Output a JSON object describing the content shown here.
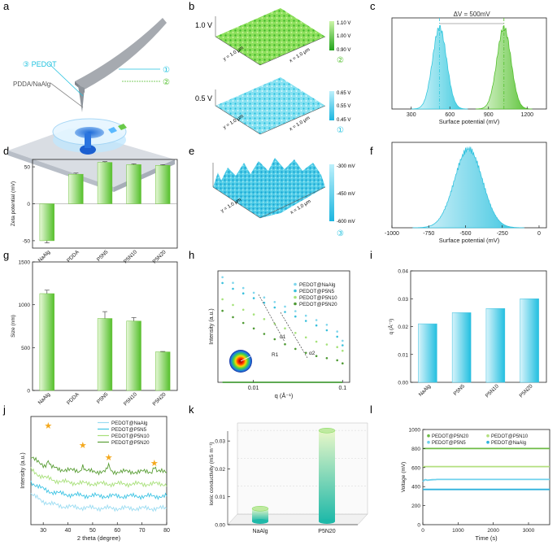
{
  "panel_labels": [
    "a",
    "b",
    "c",
    "d",
    "e",
    "f",
    "g",
    "h",
    "i",
    "j",
    "k",
    "l"
  ],
  "panel_a": {
    "labels": {
      "pedot": "③ PEDOT",
      "substrate": "PDDA/NaAlg",
      "circle1": "①",
      "circle2": "②"
    }
  },
  "panel_b": {
    "top": {
      "voltage": "1.0 V",
      "x_axis": "x = 1.0 μm",
      "y_axis": "y = 1.0 μm",
      "scale": [
        "1.10 V",
        "1.00 V",
        "0.90 V"
      ],
      "marker": "②"
    },
    "bottom": {
      "voltage": "0.5 V",
      "x_axis": "x = 1.0 μm",
      "y_axis": "y = 1.0 μm",
      "scale": [
        "0.65 V",
        "0.55 V",
        "0.45 V"
      ],
      "marker": "①"
    }
  },
  "panel_f": {
    "x_axis": "x = 1.0 μm",
    "y_axis": "y = 1.0 μm",
    "scale": [
      "-300 mV",
      "-450 mV",
      "-600 mV"
    ],
    "marker": "③"
  },
  "chart_data": [
    {
      "id": "c",
      "type": "area",
      "title": "",
      "xlabel": "Surface potential (mV)",
      "ylabel": "",
      "xlim": [
        150,
        1350
      ],
      "xticks": [
        "300",
        "600",
        "900",
        "1200"
      ],
      "annotation": "ΔV = 500mV",
      "series": [
        {
          "name": "① 0.5 V",
          "center": 520,
          "sd": 55,
          "color": "#33c7dd"
        },
        {
          "name": "② 1.0 V",
          "center": 1020,
          "sd": 55,
          "color": "#52bf2c"
        }
      ]
    },
    {
      "id": "d",
      "type": "bar",
      "title": "",
      "xlabel": "",
      "ylabel": "Zeta potential (mV)",
      "ylim": [
        -60,
        60
      ],
      "yticks": [
        "-50",
        "0",
        "50"
      ],
      "categories": [
        "NaAlg",
        "PDDA",
        "P5N5",
        "P5N10",
        "P5N20"
      ],
      "values": [
        -50,
        40,
        56,
        53,
        52
      ],
      "errors": [
        3,
        1.5,
        1,
        1,
        1
      ]
    },
    {
      "id": "g",
      "type": "area",
      "title": "",
      "xlabel": "Surface potential (mV)",
      "ylabel": "",
      "xlim": [
        -1000,
        50
      ],
      "xticks": [
        "-1000",
        "-750",
        "-500",
        "-250",
        "0"
      ],
      "series": [
        {
          "name": "③ PEDOT",
          "center": -480,
          "sd": 95,
          "color": "#33c3df"
        }
      ]
    },
    {
      "id": "e",
      "type": "bar",
      "title": "",
      "xlabel": "",
      "ylabel": "Size (nm)",
      "ylim": [
        0,
        1500
      ],
      "yticks": [
        "0",
        "500",
        "1000",
        "1500"
      ],
      "categories": [
        "NaAlg",
        "PDDA",
        "P5N5",
        "P5N10",
        "P5N20"
      ],
      "values": [
        1130,
        0,
        840,
        810,
        450
      ],
      "errors": [
        40,
        0,
        80,
        40,
        5
      ]
    },
    {
      "id": "h",
      "type": "scatter",
      "title": "",
      "xlabel": "q (Å⁻¹)",
      "ylabel": "Intensity (a.u.)",
      "xscale": "log",
      "xlim": [
        0.004,
        0.12
      ],
      "xticks": [
        "0.01",
        "0.1"
      ],
      "annotations": [
        "α1",
        "R1",
        "α2"
      ],
      "series": [
        {
          "name": "PEDOT@NaAlg",
          "color": "#7fd6ec",
          "y": [
            10.0,
            9.46,
            8.97,
            8.52,
            8.07,
            7.64,
            7.2,
            6.77,
            6.34,
            5.92,
            5.47,
            4.83,
            3.95
          ]
        },
        {
          "name": "PEDOT@P5N5",
          "color": "#3ac0dc",
          "y": [
            9.45,
            8.9,
            8.46,
            8.0,
            7.57,
            7.12,
            6.69,
            6.26,
            5.84,
            5.41,
            4.95,
            4.34,
            3.52
          ]
        },
        {
          "name": "PEDOT@P5N10",
          "color": "#a6e27a",
          "y": [
            7.9,
            7.36,
            6.9,
            6.45,
            6.01,
            5.57,
            5.13,
            4.7,
            4.27,
            3.87,
            3.6,
            3.35,
            3.0
          ]
        },
        {
          "name": "PEDOT@P5N20",
          "color": "#4f9a34",
          "y": [
            6.8,
            6.2,
            5.65,
            5.12,
            4.6,
            4.1,
            3.62,
            3.18,
            2.8,
            2.5,
            2.3,
            2.1,
            1.8
          ]
        }
      ],
      "x": [
        0.0045,
        0.0059,
        0.0077,
        0.0101,
        0.0132,
        0.0173,
        0.0226,
        0.0296,
        0.0388,
        0.0508,
        0.0665,
        0.087,
        0.1
      ]
    },
    {
      "id": "i",
      "type": "bar",
      "title": "",
      "xlabel": "",
      "ylabel": "q (Å⁻¹)",
      "ylim": [
        0,
        0.04
      ],
      "yticks": [
        "0.00",
        "0.01",
        "0.02",
        "0.03",
        "0.04"
      ],
      "categories": [
        "NaAlg",
        "P5N5",
        "P5N10",
        "P5N20"
      ],
      "values": [
        0.021,
        0.025,
        0.0265,
        0.03
      ]
    },
    {
      "id": "j",
      "type": "line",
      "title": "",
      "xlabel": "2 theta (degree)",
      "ylabel": "Intensity (a.u.)",
      "xlim": [
        25,
        80
      ],
      "xticks": [
        "30",
        "40",
        "50",
        "60",
        "70",
        "80"
      ],
      "peaks_marked": [
        32,
        46,
        56.5,
        75
      ],
      "series": [
        {
          "name": "PEDOT@NaAlg",
          "color": "#9bdcf2",
          "offset": 0
        },
        {
          "name": "PEDOT@P5N5",
          "color": "#3ec4e4",
          "offset": 1
        },
        {
          "name": "PEDOT@P5N10",
          "color": "#a8e07a",
          "offset": 2
        },
        {
          "name": "PEDOT@P5N20",
          "color": "#5a9e36",
          "offset": 3
        }
      ]
    },
    {
      "id": "k",
      "type": "bar",
      "title": "",
      "xlabel": "",
      "ylabel": "Ionic conductivity (mS m⁻¹)",
      "ylim": [
        0,
        0.035
      ],
      "yticks": [
        "0.00",
        "0.01",
        "0.02",
        "0.03"
      ],
      "categories": [
        "NaAlg",
        "P5N20"
      ],
      "values": [
        0.004,
        0.032
      ]
    },
    {
      "id": "l",
      "type": "line",
      "title": "",
      "xlabel": "Time (s)",
      "ylabel": "Voltage (mV)",
      "xlim": [
        0,
        3600
      ],
      "ylim": [
        0,
        1000
      ],
      "xticks": [
        "0",
        "1000",
        "2000",
        "3000"
      ],
      "yticks": [
        "0",
        "200",
        "400",
        "600",
        "800",
        "1000"
      ],
      "series": [
        {
          "name": "PEDOT@P5N20",
          "color": "#6dbb45",
          "level": 800
        },
        {
          "name": "PEDOT@P5N10",
          "color": "#b3df7f",
          "level": 610
        },
        {
          "name": "PEDOT@P5N5",
          "color": "#6ed1ec",
          "level": 475
        },
        {
          "name": "PEDOT@NaAlg",
          "color": "#2fb1dc",
          "level": 370
        }
      ]
    }
  ]
}
